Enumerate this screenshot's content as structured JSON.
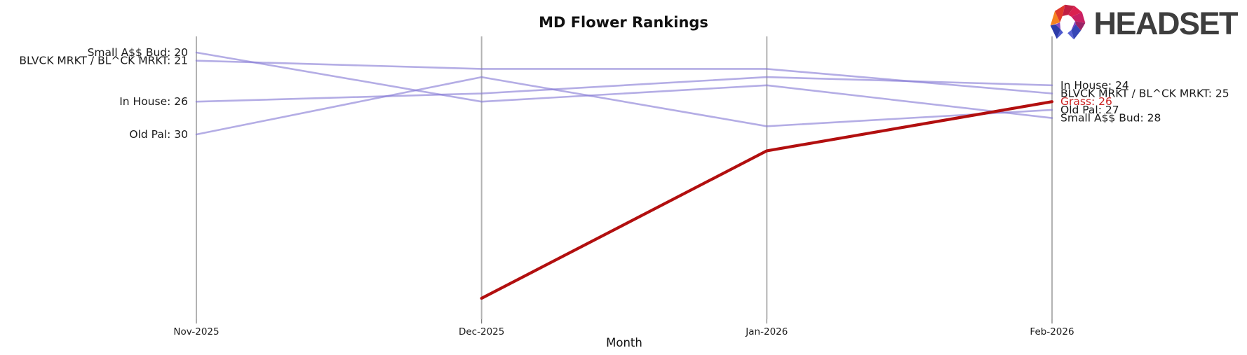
{
  "header": {
    "title": "MD Flower Rankings",
    "logo_text": "HEADSET"
  },
  "chart_data": {
    "type": "line",
    "variant": "rank-bump-chart",
    "title": "MD Flower Rankings",
    "xlabel": "Month",
    "categories": [
      "Nov-2025",
      "Dec-2025",
      "Jan-2026",
      "Feb-2026"
    ],
    "y_axis": "brand sales rank, lower number = better, axis inverted and unlabeled",
    "visible_rank_range": [
      20,
      50
    ],
    "grid": "vertical gridline at each month, no horizontal gridlines",
    "legend_position": "none - series labeled directly at line endpoints",
    "series": [
      {
        "name": "Small A$$ Bud",
        "color": "#8276d4",
        "highlighted": false,
        "label_color": "#1a1a1a",
        "values": [
          20,
          26,
          24,
          28
        ],
        "start_label": "Small A$$ Bud: 20",
        "end_label": "Small A$$ Bud: 28"
      },
      {
        "name": "BLVCK MRKT / BL^CK MRKT",
        "color": "#8276d4",
        "highlighted": false,
        "label_color": "#1a1a1a",
        "values": [
          21,
          22,
          22,
          25
        ],
        "start_label": "BLVCK MRKT / BL^CK MRKT: 21",
        "end_label": "BLVCK MRKT / BL^CK MRKT: 25"
      },
      {
        "name": "In House",
        "color": "#8276d4",
        "highlighted": false,
        "label_color": "#1a1a1a",
        "values": [
          26,
          25,
          23,
          24
        ],
        "start_label": "In House: 26",
        "end_label": "In House: 24"
      },
      {
        "name": "Old Pal",
        "color": "#8276d4",
        "highlighted": false,
        "label_color": "#1a1a1a",
        "values": [
          30,
          23,
          29,
          27
        ],
        "start_label": "Old Pal: 30",
        "end_label": "Old Pal: 27"
      },
      {
        "name": "Grass",
        "color": "#b20f0f",
        "highlighted": true,
        "label_color": "#cc2222",
        "values": [
          null,
          50,
          32,
          26
        ],
        "start_label": null,
        "end_label": "Grass: 26"
      }
    ]
  }
}
